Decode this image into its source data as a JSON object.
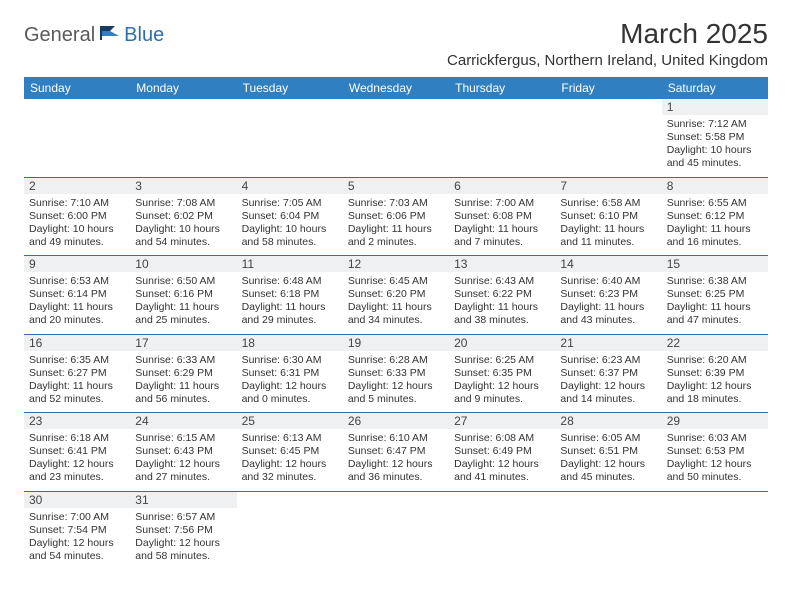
{
  "brand": {
    "part1": "General",
    "part2": "Blue"
  },
  "title": "March 2025",
  "location": "Carrickfergus, Northern Ireland, United Kingdom",
  "colors": {
    "header_bg": "#2f7fc1",
    "header_text": "#ffffff",
    "border": "#2f6fb0",
    "daynum_bg": "#eef0f2",
    "text": "#333333",
    "logo_gray": "#5a5a5a",
    "logo_blue": "#2f6fb0",
    "page_bg": "#ffffff"
  },
  "day_headers": [
    "Sunday",
    "Monday",
    "Tuesday",
    "Wednesday",
    "Thursday",
    "Friday",
    "Saturday"
  ],
  "weeks": [
    [
      {
        "n": "",
        "sr": "",
        "ss": "",
        "dl": ""
      },
      {
        "n": "",
        "sr": "",
        "ss": "",
        "dl": ""
      },
      {
        "n": "",
        "sr": "",
        "ss": "",
        "dl": ""
      },
      {
        "n": "",
        "sr": "",
        "ss": "",
        "dl": ""
      },
      {
        "n": "",
        "sr": "",
        "ss": "",
        "dl": ""
      },
      {
        "n": "",
        "sr": "",
        "ss": "",
        "dl": ""
      },
      {
        "n": "1",
        "sr": "Sunrise: 7:12 AM",
        "ss": "Sunset: 5:58 PM",
        "dl": "Daylight: 10 hours and 45 minutes."
      }
    ],
    [
      {
        "n": "2",
        "sr": "Sunrise: 7:10 AM",
        "ss": "Sunset: 6:00 PM",
        "dl": "Daylight: 10 hours and 49 minutes."
      },
      {
        "n": "3",
        "sr": "Sunrise: 7:08 AM",
        "ss": "Sunset: 6:02 PM",
        "dl": "Daylight: 10 hours and 54 minutes."
      },
      {
        "n": "4",
        "sr": "Sunrise: 7:05 AM",
        "ss": "Sunset: 6:04 PM",
        "dl": "Daylight: 10 hours and 58 minutes."
      },
      {
        "n": "5",
        "sr": "Sunrise: 7:03 AM",
        "ss": "Sunset: 6:06 PM",
        "dl": "Daylight: 11 hours and 2 minutes."
      },
      {
        "n": "6",
        "sr": "Sunrise: 7:00 AM",
        "ss": "Sunset: 6:08 PM",
        "dl": "Daylight: 11 hours and 7 minutes."
      },
      {
        "n": "7",
        "sr": "Sunrise: 6:58 AM",
        "ss": "Sunset: 6:10 PM",
        "dl": "Daylight: 11 hours and 11 minutes."
      },
      {
        "n": "8",
        "sr": "Sunrise: 6:55 AM",
        "ss": "Sunset: 6:12 PM",
        "dl": "Daylight: 11 hours and 16 minutes."
      }
    ],
    [
      {
        "n": "9",
        "sr": "Sunrise: 6:53 AM",
        "ss": "Sunset: 6:14 PM",
        "dl": "Daylight: 11 hours and 20 minutes."
      },
      {
        "n": "10",
        "sr": "Sunrise: 6:50 AM",
        "ss": "Sunset: 6:16 PM",
        "dl": "Daylight: 11 hours and 25 minutes."
      },
      {
        "n": "11",
        "sr": "Sunrise: 6:48 AM",
        "ss": "Sunset: 6:18 PM",
        "dl": "Daylight: 11 hours and 29 minutes."
      },
      {
        "n": "12",
        "sr": "Sunrise: 6:45 AM",
        "ss": "Sunset: 6:20 PM",
        "dl": "Daylight: 11 hours and 34 minutes."
      },
      {
        "n": "13",
        "sr": "Sunrise: 6:43 AM",
        "ss": "Sunset: 6:22 PM",
        "dl": "Daylight: 11 hours and 38 minutes."
      },
      {
        "n": "14",
        "sr": "Sunrise: 6:40 AM",
        "ss": "Sunset: 6:23 PM",
        "dl": "Daylight: 11 hours and 43 minutes."
      },
      {
        "n": "15",
        "sr": "Sunrise: 6:38 AM",
        "ss": "Sunset: 6:25 PM",
        "dl": "Daylight: 11 hours and 47 minutes."
      }
    ],
    [
      {
        "n": "16",
        "sr": "Sunrise: 6:35 AM",
        "ss": "Sunset: 6:27 PM",
        "dl": "Daylight: 11 hours and 52 minutes."
      },
      {
        "n": "17",
        "sr": "Sunrise: 6:33 AM",
        "ss": "Sunset: 6:29 PM",
        "dl": "Daylight: 11 hours and 56 minutes."
      },
      {
        "n": "18",
        "sr": "Sunrise: 6:30 AM",
        "ss": "Sunset: 6:31 PM",
        "dl": "Daylight: 12 hours and 0 minutes."
      },
      {
        "n": "19",
        "sr": "Sunrise: 6:28 AM",
        "ss": "Sunset: 6:33 PM",
        "dl": "Daylight: 12 hours and 5 minutes."
      },
      {
        "n": "20",
        "sr": "Sunrise: 6:25 AM",
        "ss": "Sunset: 6:35 PM",
        "dl": "Daylight: 12 hours and 9 minutes."
      },
      {
        "n": "21",
        "sr": "Sunrise: 6:23 AM",
        "ss": "Sunset: 6:37 PM",
        "dl": "Daylight: 12 hours and 14 minutes."
      },
      {
        "n": "22",
        "sr": "Sunrise: 6:20 AM",
        "ss": "Sunset: 6:39 PM",
        "dl": "Daylight: 12 hours and 18 minutes."
      }
    ],
    [
      {
        "n": "23",
        "sr": "Sunrise: 6:18 AM",
        "ss": "Sunset: 6:41 PM",
        "dl": "Daylight: 12 hours and 23 minutes."
      },
      {
        "n": "24",
        "sr": "Sunrise: 6:15 AM",
        "ss": "Sunset: 6:43 PM",
        "dl": "Daylight: 12 hours and 27 minutes."
      },
      {
        "n": "25",
        "sr": "Sunrise: 6:13 AM",
        "ss": "Sunset: 6:45 PM",
        "dl": "Daylight: 12 hours and 32 minutes."
      },
      {
        "n": "26",
        "sr": "Sunrise: 6:10 AM",
        "ss": "Sunset: 6:47 PM",
        "dl": "Daylight: 12 hours and 36 minutes."
      },
      {
        "n": "27",
        "sr": "Sunrise: 6:08 AM",
        "ss": "Sunset: 6:49 PM",
        "dl": "Daylight: 12 hours and 41 minutes."
      },
      {
        "n": "28",
        "sr": "Sunrise: 6:05 AM",
        "ss": "Sunset: 6:51 PM",
        "dl": "Daylight: 12 hours and 45 minutes."
      },
      {
        "n": "29",
        "sr": "Sunrise: 6:03 AM",
        "ss": "Sunset: 6:53 PM",
        "dl": "Daylight: 12 hours and 50 minutes."
      }
    ],
    [
      {
        "n": "30",
        "sr": "Sunrise: 7:00 AM",
        "ss": "Sunset: 7:54 PM",
        "dl": "Daylight: 12 hours and 54 minutes."
      },
      {
        "n": "31",
        "sr": "Sunrise: 6:57 AM",
        "ss": "Sunset: 7:56 PM",
        "dl": "Daylight: 12 hours and 58 minutes."
      },
      {
        "n": "",
        "sr": "",
        "ss": "",
        "dl": ""
      },
      {
        "n": "",
        "sr": "",
        "ss": "",
        "dl": ""
      },
      {
        "n": "",
        "sr": "",
        "ss": "",
        "dl": ""
      },
      {
        "n": "",
        "sr": "",
        "ss": "",
        "dl": ""
      },
      {
        "n": "",
        "sr": "",
        "ss": "",
        "dl": ""
      }
    ]
  ]
}
